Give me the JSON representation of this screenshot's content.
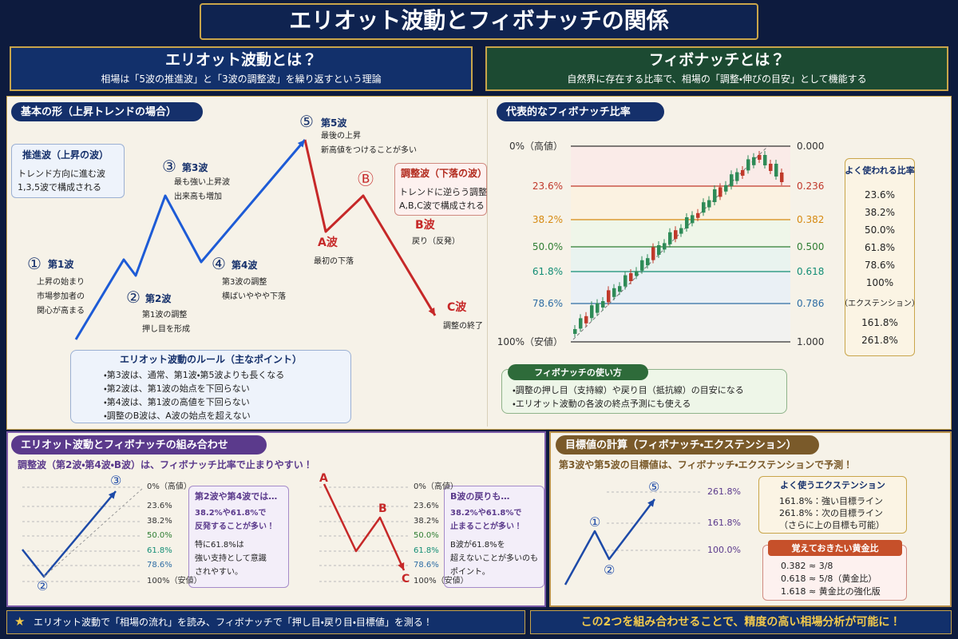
{
  "title": "エリオット波動とフィボナッチの関係",
  "header": {
    "left": {
      "title": "エリオット波動とは？",
      "subtitle": "相場は「5波の推進波」と「3波の調整波」を繰り返すという理論"
    },
    "right": {
      "title": "フィボナッチとは？",
      "subtitle": "自然界に存在する比率で、相場の「調整・伸びの目安」として機能する"
    }
  },
  "basic": {
    "title": "基本の形（上昇トレンドの場合）",
    "impulse": {
      "title": "推進波（上昇の波）",
      "lines": [
        "トレンド方向に進む波",
        "1,3,5波で構成される"
      ]
    },
    "corrective": {
      "title": "調整波（下落の波）",
      "lines": [
        "トレンドに逆らう調整",
        "A,B,C波で構成される"
      ]
    },
    "waves": [
      {
        "marker": "①",
        "name": "第1波",
        "lines": [
          "上昇の始まり",
          "市場参加者の",
          "関心が高まる"
        ]
      },
      {
        "marker": "②",
        "name": "第2波",
        "lines": [
          "第1波の調整",
          "押し目を形成"
        ]
      },
      {
        "marker": "③",
        "name": "第3波",
        "lines": [
          "最も強い上昇波",
          "出来高も増加"
        ]
      },
      {
        "marker": "④",
        "name": "第4波",
        "lines": [
          "第3波の調整",
          "横ばいややや下落"
        ]
      },
      {
        "marker": "⑤",
        "name": "第5波",
        "lines": [
          "最後の上昇",
          "新高値をつけることが多い"
        ]
      },
      {
        "name": "A波",
        "lines": [
          "最初の下落"
        ]
      },
      {
        "marker": "Ⓑ",
        "name": "B波",
        "lines": [
          "戻り（反発）"
        ]
      },
      {
        "name": "C波",
        "lines": [
          "調整の終了"
        ]
      }
    ],
    "rules": {
      "title": "エリオット波動のルール（主なポイント）",
      "items": [
        "・第3波は、通常、第1波・第5波よりも長くなる",
        "・第2波は、第1波の始点を下回らない",
        "・第4波は、第1波の高値を下回らない",
        "・調整のB波は、A波の始点を超えない"
      ]
    }
  },
  "ratios": {
    "title": "代表的なフィボナッチ比率",
    "levels": [
      {
        "left": "0%（高値）",
        "right": "0.000",
        "color": "#333333"
      },
      {
        "left": "23.6%",
        "right": "0.236",
        "color": "#c0392b"
      },
      {
        "left": "38.2%",
        "right": "0.382",
        "color": "#d68910"
      },
      {
        "left": "50.0%",
        "right": "0.500",
        "color": "#2e7d32"
      },
      {
        "left": "61.8%",
        "right": "0.618",
        "color": "#138d75"
      },
      {
        "left": "78.6%",
        "right": "0.786",
        "color": "#2e6da4"
      },
      {
        "left": "100%（安値）",
        "right": "1.000",
        "color": "#333333"
      }
    ],
    "common": {
      "title": "よく使われる比率",
      "items": [
        "23.6%",
        "38.2%",
        "50.0%",
        "61.8%",
        "78.6%",
        "100%",
        "（エクステンション）",
        "161.8%",
        "261.8%"
      ]
    },
    "usage": {
      "title": "フィボナッチの使い方",
      "items": [
        "・調整の押し目（支持線）や戻り目（抵抗線）の目安になる",
        "・エリオット波動の各波の終点予測にも使える"
      ]
    }
  },
  "combo": {
    "title": "エリオット波動とフィボナッチの組み合わせ",
    "subtitle": "調整波（第2波・第4波・B波）は、フィボナッチ比率で止まりやすい！",
    "levels": [
      "0%（高値）",
      "23.6%",
      "38.2%",
      "50.0%",
      "61.8%",
      "78.6%",
      "100%（安値）"
    ],
    "left_markers": [
      "②",
      "③"
    ],
    "right_markers": [
      "A",
      "B",
      "C"
    ],
    "notes": [
      {
        "title": "第2波や第4波では…",
        "lines": [
          "38.2%や61.8%で",
          "反発することが多い！",
          "特に61.8%は",
          "強い支持として意識",
          "されやすい。"
        ]
      },
      {
        "title": "B波の戻りも…",
        "lines": [
          "38.2%や61.8%で",
          "止まることが多い！",
          "B波が61.8%を",
          "超えないことが多いのも",
          "ポイント。"
        ]
      }
    ]
  },
  "target": {
    "title": "目標値の計算（フィボナッチ・エクステンション）",
    "subtitle": "第3波や第5波の目標値は、フィボナッチ・エクステンションで予測！",
    "levels": [
      "261.8%",
      "161.8%",
      "100.0%"
    ],
    "markers": [
      "①",
      "②",
      "⑤"
    ],
    "extension": {
      "title": "よく使うエクステンション",
      "lines": [
        "161.8%：強い目標ライン",
        "261.8%：次の目標ライン",
        "（さらに上の目標も可能）"
      ]
    },
    "golden": {
      "title": "覚えておきたい黄金比",
      "lines": [
        "0.382 ≈ 3/8",
        "0.618 ≈ 5/8（黄金比）",
        "1.618 ≈ 黄金比の強化版"
      ]
    }
  },
  "footer": {
    "star": "★",
    "left": "エリオット波動で「相場の流れ」を読み、フィボナッチで「押し目・戻り目・目標値」を測る！",
    "right": "この2つを組み合わせることで、精度の高い相場分析が可能に！"
  }
}
